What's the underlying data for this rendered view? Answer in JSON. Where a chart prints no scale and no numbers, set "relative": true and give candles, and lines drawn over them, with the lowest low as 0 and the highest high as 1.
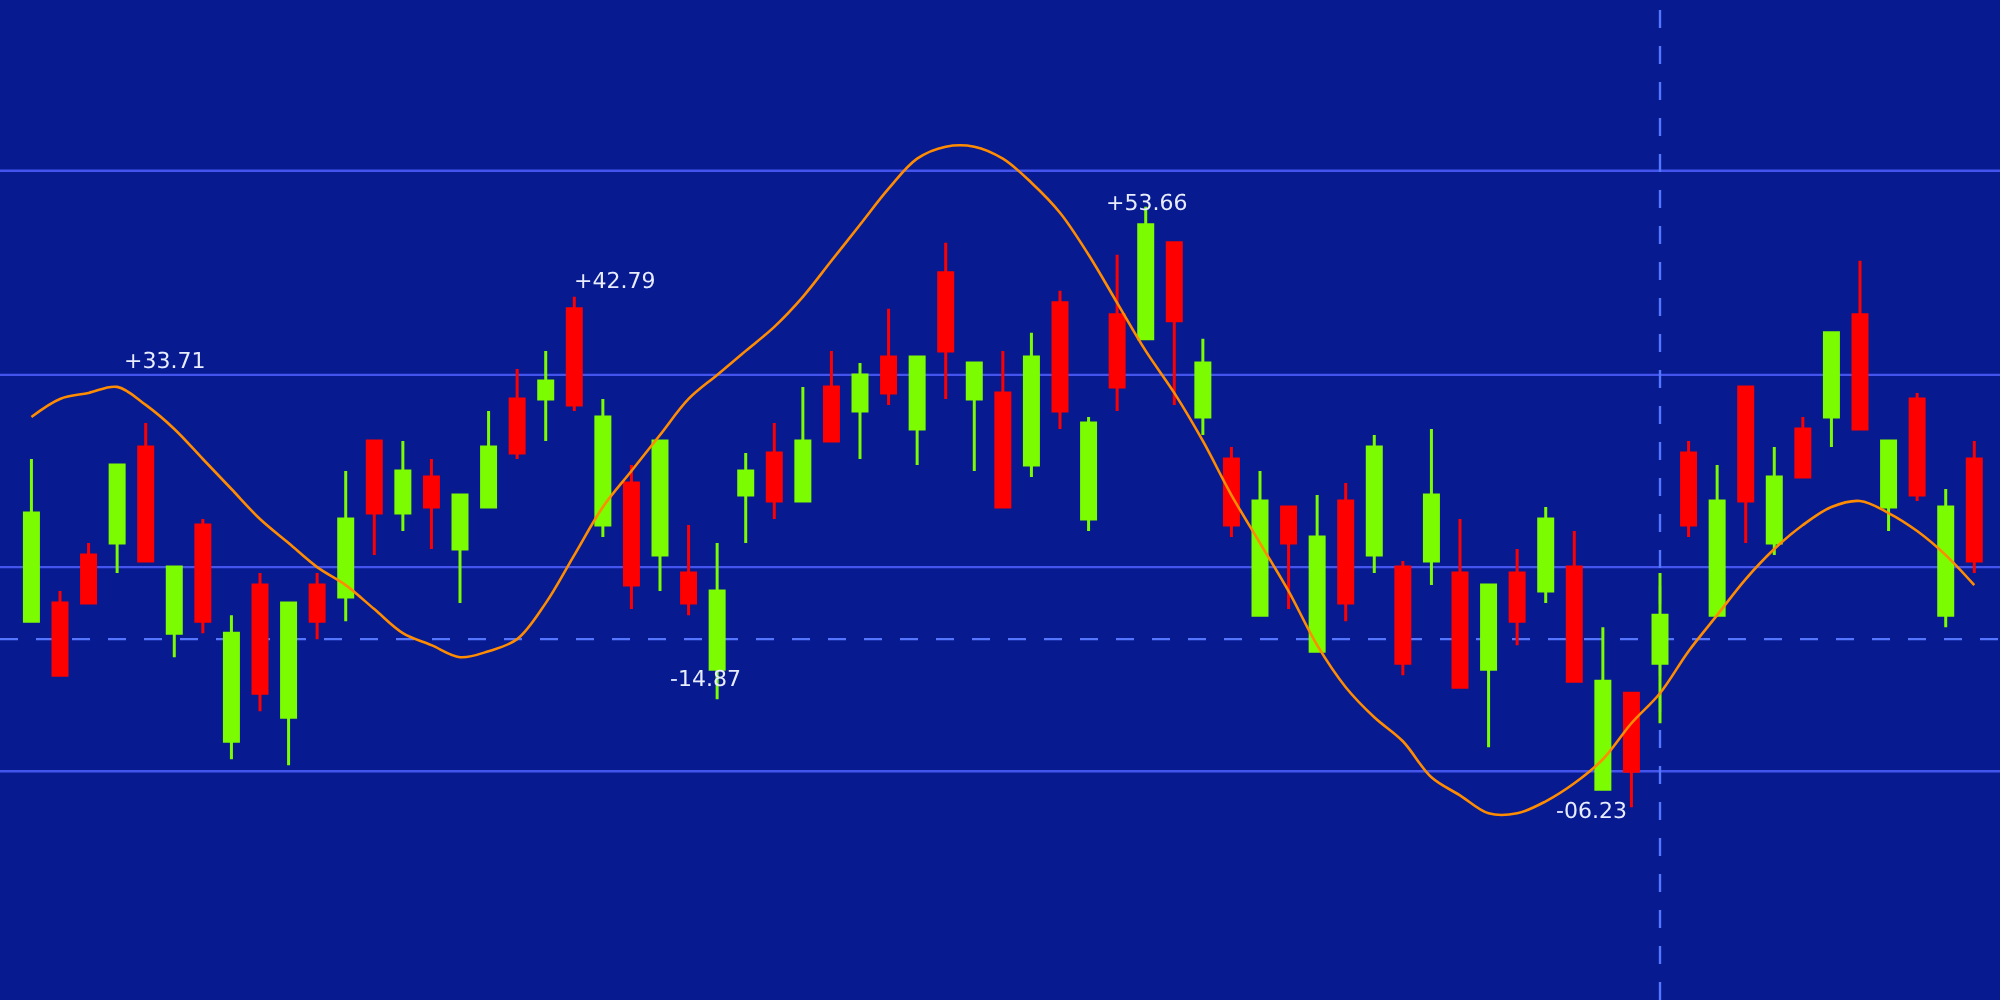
{
  "chart_data": {
    "type": "candlestick",
    "relative": true,
    "categories": [
      null,
      null,
      null,
      null,
      null,
      null,
      null,
      null,
      null,
      null,
      null,
      null,
      null,
      null,
      null,
      null,
      null,
      null,
      null,
      null,
      null,
      null,
      null,
      null,
      null,
      null,
      null,
      null,
      null,
      null,
      null,
      null,
      null,
      null,
      null,
      null,
      null,
      null,
      null,
      null,
      null,
      null,
      null,
      null,
      null,
      null,
      null,
      null,
      null,
      null,
      null,
      null,
      null,
      null,
      null,
      null,
      null,
      null,
      null,
      null,
      null,
      null,
      null,
      null,
      null,
      null,
      null,
      null,
      null
    ],
    "ohlc": [
      [
        0.31,
        0.58,
        0.31,
        0.49
      ],
      [
        0.34,
        0.36,
        0.22,
        0.22
      ],
      [
        0.42,
        0.44,
        0.34,
        0.34
      ],
      [
        0.44,
        0.57,
        0.39,
        0.57
      ],
      [
        0.6,
        0.64,
        0.41,
        0.41
      ],
      [
        0.29,
        0.4,
        0.25,
        0.4
      ],
      [
        0.47,
        0.48,
        0.29,
        0.31
      ],
      [
        0.11,
        0.32,
        0.08,
        0.29
      ],
      [
        0.37,
        0.39,
        0.16,
        0.19
      ],
      [
        0.15,
        0.34,
        0.07,
        0.34
      ],
      [
        0.37,
        0.39,
        0.28,
        0.31
      ],
      [
        0.35,
        0.56,
        0.31,
        0.48
      ],
      [
        0.61,
        0.61,
        0.42,
        0.49
      ],
      [
        0.49,
        0.61,
        0.46,
        0.56
      ],
      [
        0.55,
        0.58,
        0.43,
        0.5
      ],
      [
        0.43,
        0.52,
        0.34,
        0.52
      ],
      [
        0.5,
        0.66,
        0.5,
        0.6
      ],
      [
        0.68,
        0.73,
        0.58,
        0.59
      ],
      [
        0.68,
        0.76,
        0.61,
        0.71
      ],
      [
        0.83,
        0.85,
        0.66,
        0.67
      ],
      [
        0.47,
        0.68,
        0.45,
        0.65
      ],
      [
        0.54,
        0.57,
        0.33,
        0.37
      ],
      [
        0.42,
        0.61,
        0.36,
        0.61
      ],
      [
        0.39,
        0.47,
        0.32,
        0.34
      ],
      [
        0.23,
        0.44,
        0.18,
        0.36
      ],
      [
        0.52,
        0.59,
        0.44,
        0.56
      ],
      [
        0.59,
        0.64,
        0.48,
        0.51
      ],
      [
        0.51,
        0.7,
        0.51,
        0.61
      ],
      [
        0.7,
        0.76,
        0.61,
        0.61
      ],
      [
        0.66,
        0.74,
        0.58,
        0.72
      ],
      [
        0.75,
        0.83,
        0.67,
        0.69
      ],
      [
        0.63,
        0.75,
        0.57,
        0.75
      ],
      [
        0.89,
        0.94,
        0.68,
        0.76
      ],
      [
        0.68,
        0.74,
        0.56,
        0.74
      ],
      [
        0.69,
        0.76,
        0.5,
        0.5
      ],
      [
        0.57,
        0.79,
        0.55,
        0.75
      ],
      [
        0.84,
        0.86,
        0.63,
        0.66
      ],
      [
        0.48,
        0.65,
        0.46,
        0.64
      ],
      [
        0.82,
        0.92,
        0.66,
        0.7
      ],
      [
        0.78,
        1.0,
        0.78,
        0.97
      ],
      [
        0.94,
        0.94,
        0.67,
        0.81
      ],
      [
        0.65,
        0.78,
        0.62,
        0.74
      ],
      [
        0.58,
        0.6,
        0.45,
        0.47
      ],
      [
        0.32,
        0.56,
        0.32,
        0.51
      ],
      [
        0.5,
        0.5,
        0.33,
        0.44
      ],
      [
        0.26,
        0.52,
        0.26,
        0.45
      ],
      [
        0.51,
        0.54,
        0.31,
        0.34
      ],
      [
        0.42,
        0.62,
        0.39,
        0.6
      ],
      [
        0.4,
        0.41,
        0.22,
        0.24
      ],
      [
        0.41,
        0.63,
        0.37,
        0.52
      ],
      [
        0.39,
        0.48,
        0.2,
        0.2
      ],
      [
        0.23,
        0.37,
        0.1,
        0.37
      ],
      [
        0.39,
        0.43,
        0.27,
        0.31
      ],
      [
        0.36,
        0.5,
        0.34,
        0.48
      ],
      [
        0.4,
        0.46,
        0.21,
        0.21
      ],
      [
        0.03,
        0.3,
        0.03,
        0.21
      ],
      [
        0.19,
        0.19,
        0.0,
        0.06
      ],
      [
        0.24,
        0.39,
        0.14,
        0.32
      ],
      [
        0.59,
        0.61,
        0.45,
        0.47
      ],
      [
        0.32,
        0.57,
        0.32,
        0.51
      ],
      [
        0.7,
        0.7,
        0.44,
        0.51
      ],
      [
        0.44,
        0.6,
        0.42,
        0.55
      ],
      [
        0.63,
        0.65,
        0.55,
        0.55
      ],
      [
        0.65,
        0.79,
        0.6,
        0.79
      ],
      [
        0.82,
        0.91,
        0.63,
        0.63
      ],
      [
        0.5,
        0.61,
        0.46,
        0.61
      ],
      [
        0.68,
        0.69,
        0.51,
        0.52
      ],
      [
        0.32,
        0.53,
        0.3,
        0.5
      ],
      [
        0.58,
        0.61,
        0.39,
        0.41
      ]
    ],
    "colors": [
      "#7cfc00",
      "#ff0000",
      "#ff0000",
      "#7cfc00",
      "#ff0000",
      "#7cfc00",
      "#ff0000",
      "#7cfc00",
      "#ff0000",
      "#7cfc00",
      "#ff0000",
      "#7cfc00",
      "#ff0000",
      "#7cfc00",
      "#ff0000",
      "#7cfc00",
      "#7cfc00",
      "#ff0000",
      "#7cfc00",
      "#ff0000",
      "#7cfc00",
      "#ff0000",
      "#7cfc00",
      "#ff0000",
      "#7cfc00",
      "#7cfc00",
      "#ff0000",
      "#7cfc00",
      "#ff0000",
      "#7cfc00",
      "#ff0000",
      "#7cfc00",
      "#ff0000",
      "#7cfc00",
      "#ff0000",
      "#7cfc00",
      "#ff0000",
      "#7cfc00",
      "#ff0000",
      "#7cfc00",
      "#ff0000",
      "#7cfc00",
      "#ff0000",
      "#7cfc00",
      "#ff0000",
      "#7cfc00",
      "#ff0000",
      "#7cfc00",
      "#ff0000",
      "#7cfc00",
      "#ff0000",
      "#7cfc00",
      "#ff0000",
      "#7cfc00",
      "#ff0000",
      "#7cfc00",
      "#ff0000",
      "#7cfc00",
      "#ff0000",
      "#7cfc00",
      "#ff0000",
      "#7cfc00",
      "#ff0000",
      "#7cfc00",
      "#ff0000",
      "#7cfc00",
      "#ff0000",
      "#7cfc00",
      "#ff0000"
    ],
    "series": [
      {
        "type": "line",
        "color": "#ff8c00",
        "values": [
          0.65,
          0.68,
          0.69,
          0.7,
          0.67,
          0.63,
          0.58,
          0.53,
          0.48,
          0.44,
          0.4,
          0.37,
          0.33,
          0.29,
          0.27,
          0.25,
          0.26,
          0.28,
          0.34,
          0.42,
          0.5,
          0.56,
          0.62,
          0.68,
          0.72,
          0.76,
          0.8,
          0.85,
          0.91,
          0.97,
          1.03,
          1.08,
          1.1,
          1.1,
          1.08,
          1.04,
          0.99,
          0.92,
          0.84,
          0.76,
          0.69,
          0.61,
          0.52,
          0.44,
          0.36,
          0.27,
          0.2,
          0.15,
          0.11,
          0.05,
          0.02,
          -0.01,
          -0.01,
          0.01,
          0.04,
          0.08,
          0.14,
          0.19,
          0.26,
          0.32,
          0.38,
          0.43,
          0.47,
          0.5,
          0.51,
          0.49,
          0.46,
          0.42,
          0.37
        ]
      }
    ],
    "ref_lines": [
      {
        "axis": "y",
        "value": 1.06,
        "color": "#4455ee",
        "line_style": "solid"
      },
      {
        "axis": "y",
        "value": 0.72,
        "color": "#4455ee",
        "line_style": "solid"
      },
      {
        "axis": "y",
        "value": 0.4,
        "color": "#4455ee",
        "line_style": "solid"
      },
      {
        "axis": "y",
        "value": 0.28,
        "color": "#5577ff",
        "line_style": "dashed"
      },
      {
        "axis": "y",
        "value": 0.06,
        "color": "#4455ee",
        "line_style": "solid"
      }
    ],
    "annotations": [
      "+33.71",
      "+42.79",
      "+53.66",
      "-14.87",
      "-06.23"
    ]
  }
}
